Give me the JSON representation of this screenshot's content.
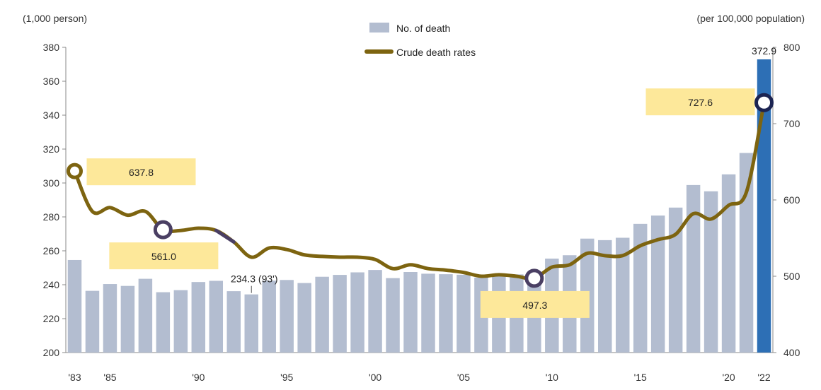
{
  "chart_data": {
    "type": "bar+line",
    "left_axis_unit": "(1,000 person)",
    "right_axis_unit": "(per 100,000 population)",
    "left_ylim": [
      200,
      380
    ],
    "left_ticks": [
      "200",
      "220",
      "240",
      "260",
      "280",
      "300",
      "320",
      "340",
      "360",
      "380"
    ],
    "right_ylim": [
      400,
      800
    ],
    "right_ticks": [
      "400",
      "500",
      "600",
      "700",
      "800"
    ],
    "years": [
      1983,
      1984,
      1985,
      1986,
      1987,
      1988,
      1989,
      1990,
      1991,
      1992,
      1993,
      1994,
      1995,
      1996,
      1997,
      1998,
      1999,
      2000,
      2001,
      2002,
      2003,
      2004,
      2005,
      2006,
      2007,
      2008,
      2009,
      2010,
      2011,
      2012,
      2013,
      2014,
      2015,
      2016,
      2017,
      2018,
      2019,
      2020,
      2021,
      2022
    ],
    "x_tick_labels": [
      {
        "year": 1983,
        "label": "'83"
      },
      {
        "year": 1985,
        "label": "'85"
      },
      {
        "year": 1990,
        "label": "'90"
      },
      {
        "year": 1995,
        "label": "'95"
      },
      {
        "year": 2000,
        "label": "'00"
      },
      {
        "year": 2005,
        "label": "'05"
      },
      {
        "year": 2010,
        "label": "'10"
      },
      {
        "year": 2015,
        "label": "'15"
      },
      {
        "year": 2020,
        "label": "'20"
      },
      {
        "year": 2022,
        "label": "'22"
      }
    ],
    "series": [
      {
        "name": "No. of death",
        "type": "bar",
        "axis": "left",
        "values": [
          254.6,
          236.4,
          240.4,
          239.3,
          243.5,
          235.6,
          236.8,
          241.6,
          242.3,
          236.2,
          234.3,
          242.4,
          242.8,
          241.0,
          244.7,
          245.8,
          247.3,
          248.7,
          243.9,
          247.5,
          246.5,
          246.2,
          245.9,
          244.2,
          245.1,
          246.1,
          246.9,
          255.4,
          257.4,
          267.2,
          266.3,
          267.7,
          275.9,
          280.8,
          285.5,
          298.8,
          295.1,
          305.1,
          317.7,
          372.9
        ]
      },
      {
        "name": "Crude death rates",
        "type": "line",
        "axis": "right",
        "values": [
          637.8,
          585.0,
          590.0,
          580.0,
          585.0,
          561.0,
          560.0,
          563.0,
          560.0,
          545.0,
          525.0,
          537.0,
          535.0,
          528.0,
          526.0,
          525.0,
          525.0,
          522.0,
          510.0,
          515.0,
          510.0,
          508.0,
          505.0,
          500.0,
          502.0,
          500.0,
          497.3,
          512.0,
          515.0,
          530.0,
          527.0,
          527.0,
          540.0,
          548.0,
          555.0,
          582.0,
          575.0,
          593.0,
          610.0,
          727.6
        ]
      }
    ],
    "callouts": [
      {
        "year": 1983,
        "value": "637.8"
      },
      {
        "year": 1988,
        "value": "561.0"
      },
      {
        "year": 2009,
        "value": "497.3"
      },
      {
        "year": 2022,
        "value": "727.6"
      }
    ],
    "annotation_1993": "234.3 (93')",
    "bar_label_2022": "372.9",
    "legend": [
      "No. of death",
      "Crude death rates"
    ],
    "colors": {
      "bar": "#b3bdd0",
      "bar_highlight": "#2d6fb5",
      "line": "#7d6410",
      "line_dark": "#4a3f63",
      "callout_fill": "#fde89a",
      "marker_ring_1": "#7d6410",
      "marker_ring_2": "#4a3f63",
      "marker_ring_3": "#1c2452",
      "axis": "#888888"
    }
  }
}
